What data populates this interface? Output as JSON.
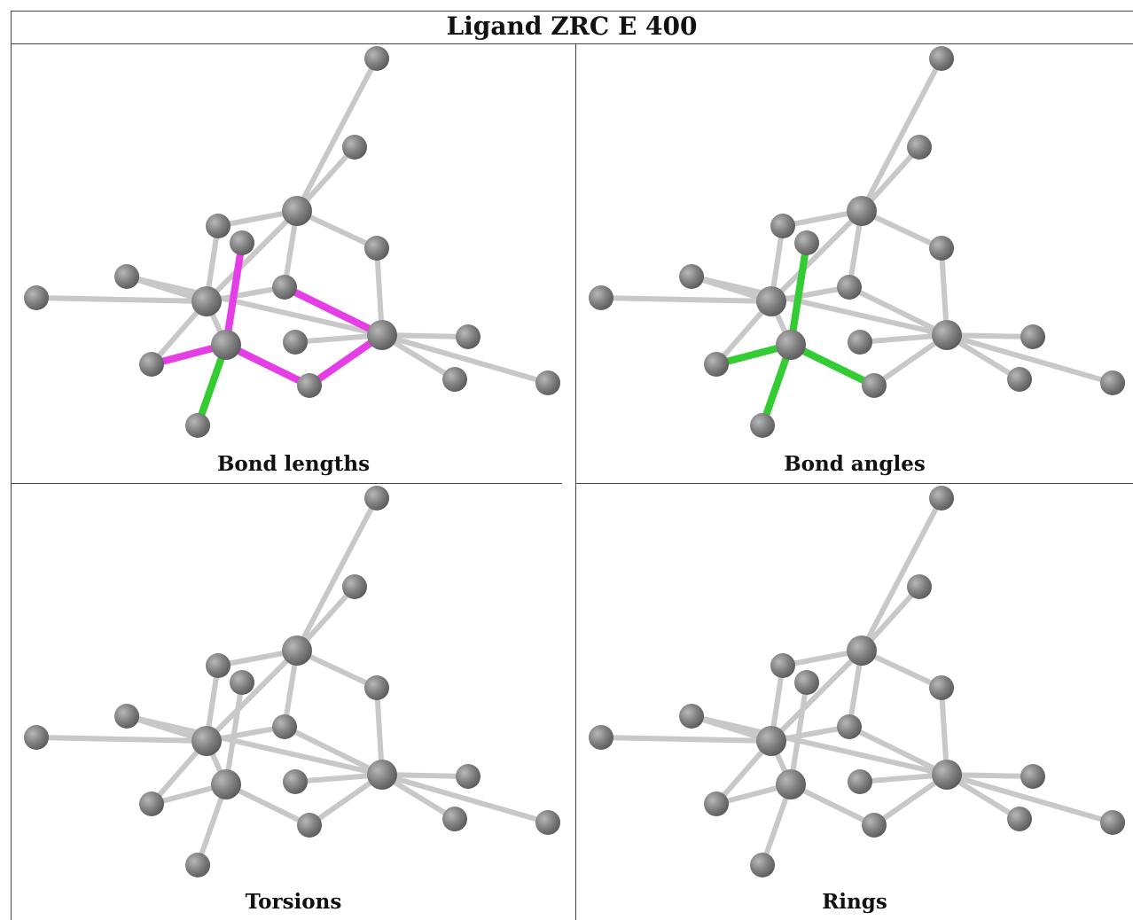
{
  "header": {
    "title": "Ligand ZRC E 400"
  },
  "panels": [
    {
      "caption": "Bond lengths",
      "highlight": "bond-lengths"
    },
    {
      "caption": "Bond angles",
      "highlight": "bond-angles"
    },
    {
      "caption": "Torsions",
      "highlight": "none"
    },
    {
      "caption": "Rings",
      "highlight": "none"
    }
  ],
  "colors": {
    "atom": "#808080",
    "bond": "#c8c8c8",
    "highlight_magenta": "#e63ee6",
    "highlight_green": "#33cc33"
  }
}
